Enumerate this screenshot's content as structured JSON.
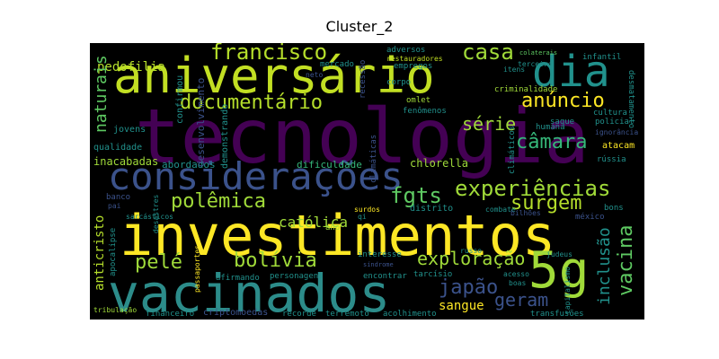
{
  "title": "Cluster_2",
  "words": {
    "tecnologia": "tecnologia",
    "investimentos": "investimentos",
    "vacinados": "vacinados",
    "aniversario": "aniversário",
    "consideracoes": "considerações",
    "dia": "dia",
    "g5": "5g",
    "francisco": "francisco",
    "pedofilia": "pedofilia",
    "naturais": "naturais",
    "documentario": "documentário",
    "casa": "casa",
    "anuncio": "anúncio",
    "serie": "série",
    "camara": "câmara",
    "experiencias": "experiências",
    "polemica": "polêmica",
    "fgts": "fgts",
    "surgem": "surgem",
    "vacina": "vacina",
    "catolica": "católica",
    "pele": "pelé",
    "bolivia": "bolívia",
    "exploracao": "exploração",
    "inclusao": "inclusão",
    "japao": "japão",
    "geram": "geram",
    "sangue": "sangue",
    "anticristo": "anticristo",
    "chlorella": "chlorella",
    "dificuldade": "dificuldade",
    "abordados": "abordados",
    "inacabadas": "inacabadas",
    "desenvolvimento": "desenvolvimento",
    "demonstrando": "demonstrando",
    "qualidade": "qualidade",
    "jovens": "jovens",
    "confirmou": "confirmou",
    "mercado": "mercado",
    "neto": "neto",
    "recessao": "recessão",
    "adversos": "adversos",
    "restauradores": "restauradores",
    "empregos": "empregos",
    "corpo": "corpo",
    "itens": "itens",
    "terceiro": "terceiro",
    "colaterais": "colaterais",
    "infantil": "infantil",
    "desmatamento": "desmatamento",
    "criminalidade": "criminalidade",
    "omlet": "omlet",
    "fenomenos": "fenômenos",
    "humana": "humana",
    "cultura": "cultura",
    "policial": "policial",
    "ignorancia": "ignorância",
    "atacam": "atacam",
    "russia": "rússia",
    "climaticas": "climáticas",
    "climaticos": "climáticos",
    "combate": "combate",
    "banco": "banco",
    "pai": "pai",
    "desastres": "desastres",
    "sarcasticos": "sarcásticos",
    "surdos": "surdos",
    "qi": "qi",
    "distrito": "distrito",
    "bilhoes": "bilhões",
    "bons": "bons",
    "mexico": "méxico",
    "ano": "ano",
    "apocalipse": "apocalipse",
    "interesse": "interesse",
    "russo": "russo",
    "sindrome": "síndrome",
    "judeus": "judeus",
    "acesso": "acesso",
    "boas": "boas",
    "capitalismo": "capitalismo",
    "afirmando": "afirmando",
    "personagens": "personagens",
    "encontrar": "encontrar",
    "tarcisio": "tarcísio",
    "passaportes": "passaportes",
    "tribulacao": "tribulação",
    "financeiro": "financeiro",
    "criptomoedas": "criptomoedas",
    "recorde": "recorde",
    "terremoto": "terremoto",
    "acolhimento": "acolhimento",
    "transfusoes": "transfusões",
    "saque": "saque"
  }
}
